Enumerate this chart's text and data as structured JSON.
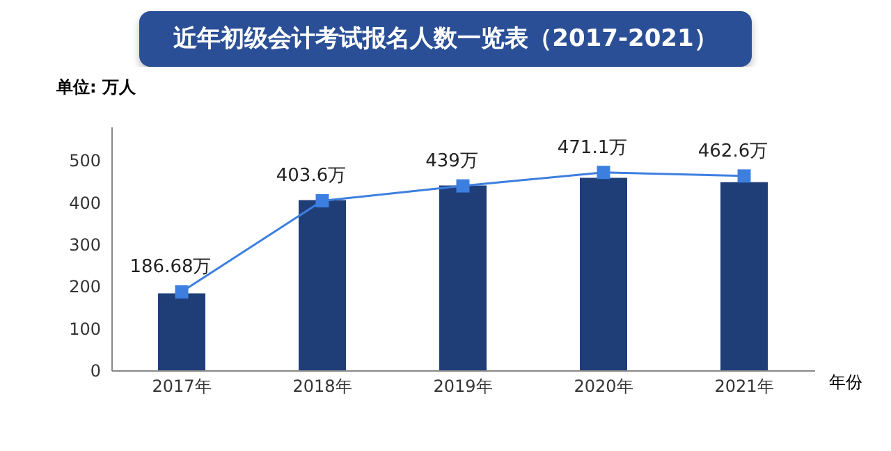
{
  "chart_data": {
    "type": "bar",
    "title": "近年初级会计考试报名人数一览表（2017-2021）",
    "ylabel": "单位: 万人",
    "xlabel": "年份",
    "categories": [
      "2017年",
      "2018年",
      "2019年",
      "2020年",
      "2021年"
    ],
    "series": [
      {
        "color": "#1f3e78",
        "values": [
          183,
          405,
          440,
          458,
          448
        ]
      },
      {
        "type": "line",
        "color": "#3d7fe0",
        "values": [
          186.68,
          403.6,
          439,
          471.1,
          462.6
        ],
        "value_labels": [
          "186.68万",
          "403.6万",
          "439万",
          "471.1万",
          "462.6万"
        ]
      }
    ],
    "ylim": [
      0,
      580
    ],
    "yticks": [
      0,
      100,
      200,
      300,
      400,
      500
    ],
    "grid": false,
    "marker": "square",
    "line_style": "solid"
  }
}
